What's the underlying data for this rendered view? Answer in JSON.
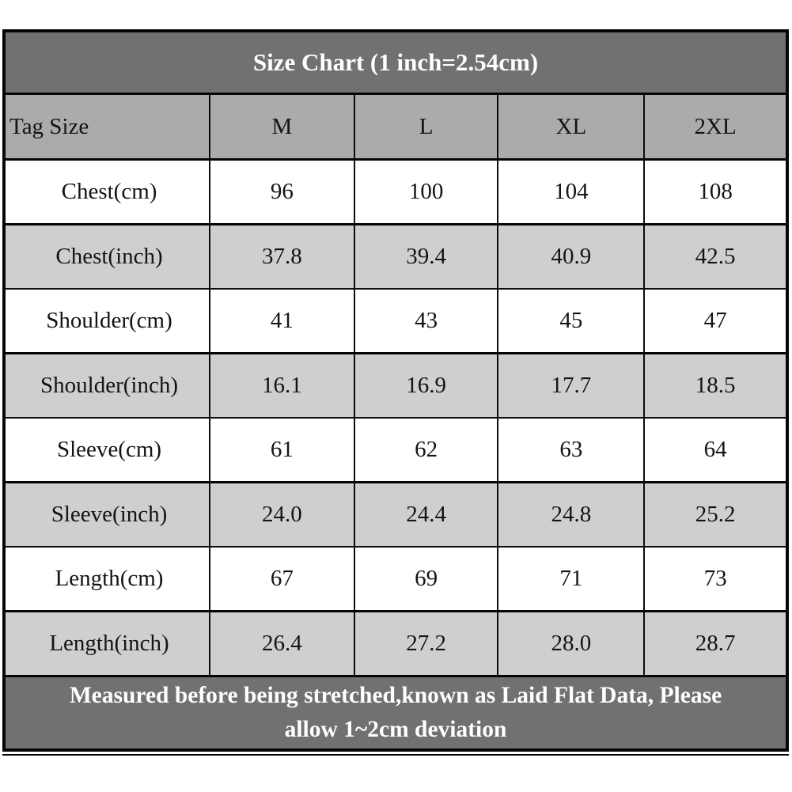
{
  "table": {
    "title": "Size Chart (1 inch=2.54cm)",
    "header": [
      "Tag Size",
      "M",
      "L",
      "XL",
      "2XL"
    ],
    "rows": [
      {
        "label": "Chest(cm)",
        "values": [
          "96",
          "100",
          "104",
          "108"
        ]
      },
      {
        "label": "Chest(inch)",
        "values": [
          "37.8",
          "39.4",
          "40.9",
          "42.5"
        ]
      },
      {
        "label": "Shoulder(cm)",
        "values": [
          "41",
          "43",
          "45",
          "47"
        ]
      },
      {
        "label": "Shoulder(inch)",
        "values": [
          "16.1",
          "16.9",
          "17.7",
          "18.5"
        ]
      },
      {
        "label": "Sleeve(cm)",
        "values": [
          "61",
          "62",
          "63",
          "64"
        ]
      },
      {
        "label": "Sleeve(inch)",
        "values": [
          "24.0",
          "24.4",
          "24.8",
          "25.2"
        ]
      },
      {
        "label": "Length(cm)",
        "values": [
          "67",
          "69",
          "71",
          "73"
        ]
      },
      {
        "label": "Length(inch)",
        "values": [
          "26.4",
          "27.2",
          "28.0",
          "28.7"
        ]
      }
    ],
    "footer_lines": [
      "Measured before being stretched,known as Laid Flat Data, Please",
      "allow 1~2cm deviation"
    ],
    "colors": {
      "title_band_bg": "#727070",
      "header_band_bg": "#ACAAAA",
      "row_white_bg": "#FFFFFF",
      "row_gray_bg": "#D0CFCF",
      "border": "#050505",
      "title_text": "#FFFFFF",
      "cell_text": "#141414"
    }
  }
}
